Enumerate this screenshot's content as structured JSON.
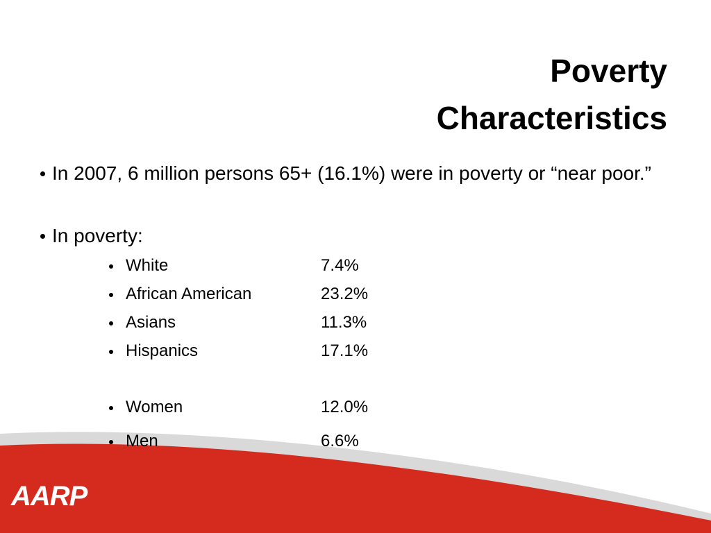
{
  "title": [
    "Poverty",
    "Characteristics"
  ],
  "bullets": [
    "In 2007, 6 million persons 65+ (16.1%) were in poverty or “near poor.”",
    "In poverty:"
  ],
  "sub_items": [
    {
      "label": "White",
      "value": "7.4%"
    },
    {
      "label": "African American",
      "value": "23.2%"
    },
    {
      "label": "Asians",
      "value": "11.3%"
    },
    {
      "label": "Hispanics",
      "value": "17.1%"
    },
    {
      "label": "Women",
      "value": "12.0%"
    },
    {
      "label": "Men",
      "value": "6.6%"
    }
  ],
  "logo": "AARP"
}
